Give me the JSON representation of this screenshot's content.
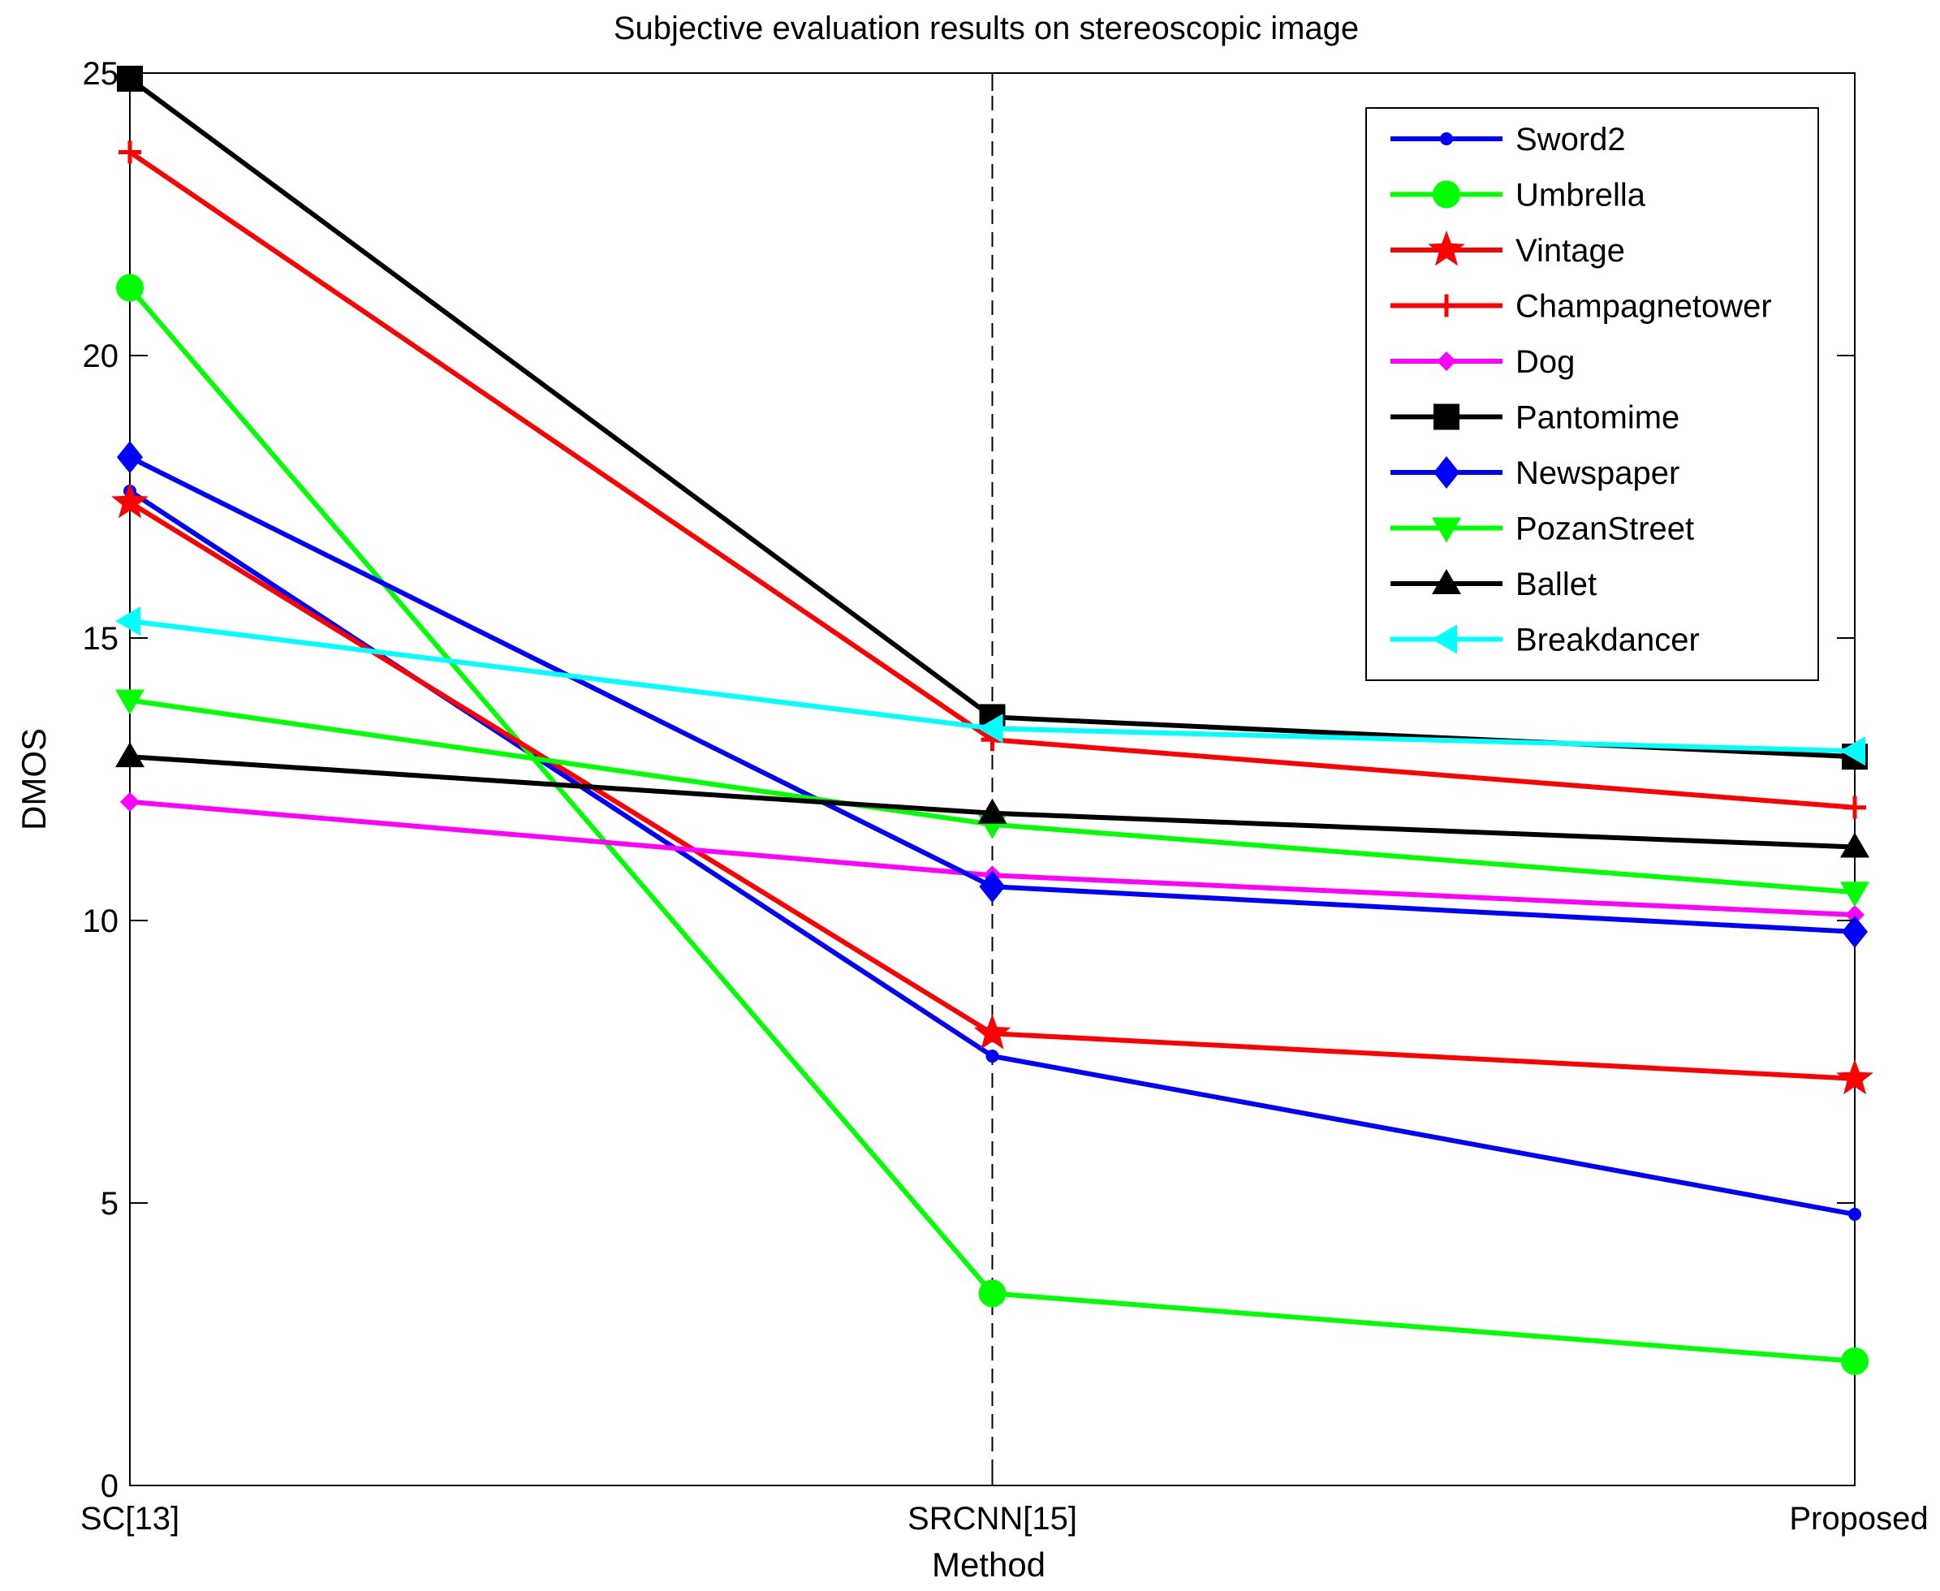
{
  "chart_data": {
    "type": "line",
    "title": "Subjective evaluation results on stereoscopic image",
    "xlabel": "Method",
    "ylabel": "DMOS",
    "categories": [
      "SC[13]",
      "SRCNN[15]",
      "Proposed"
    ],
    "ylim": [
      0,
      25
    ],
    "yticks": [
      0,
      5,
      10,
      15,
      20,
      25
    ],
    "grid": false,
    "legend_position": "top-right",
    "series": [
      {
        "name": "Sword2",
        "values": [
          17.6,
          7.6,
          4.8
        ],
        "color": "#0000ff",
        "marker": "dot"
      },
      {
        "name": "Umbrella",
        "values": [
          21.2,
          3.4,
          2.2
        ],
        "color": "#00ff00",
        "marker": "circle"
      },
      {
        "name": "Vintage",
        "values": [
          17.4,
          8.0,
          7.2
        ],
        "color": "#ff0000",
        "marker": "star"
      },
      {
        "name": "Champagnetower",
        "values": [
          23.6,
          13.2,
          12.0
        ],
        "color": "#ff0000",
        "marker": "plus"
      },
      {
        "name": "Dog",
        "values": [
          12.1,
          10.8,
          10.1
        ],
        "color": "#ff00ff",
        "marker": "small-diamond"
      },
      {
        "name": "Pantomime",
        "values": [
          24.9,
          13.6,
          12.9
        ],
        "color": "#000000",
        "marker": "square"
      },
      {
        "name": "Newspaper",
        "values": [
          18.2,
          10.6,
          9.8
        ],
        "color": "#0000ff",
        "marker": "diamond"
      },
      {
        "name": "PozanStreet",
        "values": [
          13.9,
          11.7,
          10.5
        ],
        "color": "#00ff00",
        "marker": "triangle-down"
      },
      {
        "name": "Ballet",
        "values": [
          12.9,
          11.9,
          11.3
        ],
        "color": "#000000",
        "marker": "triangle-up"
      },
      {
        "name": "Breakdancer",
        "values": [
          15.3,
          13.4,
          13.0
        ],
        "color": "#00ffff",
        "marker": "triangle-left"
      }
    ]
  }
}
